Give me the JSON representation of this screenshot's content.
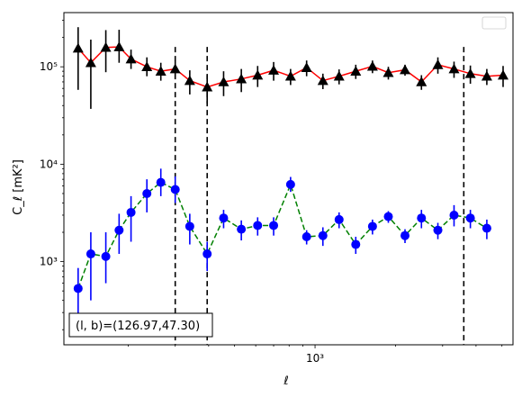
{
  "chart_data": {
    "type": "scatter",
    "xscale": "log",
    "yscale": "log",
    "xlabel": "ℓ",
    "ylabel": "C_ℓ [mK²]",
    "xlim": [
      115,
      5500
    ],
    "ylim": [
      140,
      360000
    ],
    "x_tick_labels": [
      {
        "value": 1000,
        "text": "10³"
      }
    ],
    "y_tick_labels": [
      {
        "value": 1000,
        "text": "10³"
      },
      {
        "value": 10000,
        "text": "10⁴"
      },
      {
        "value": 100000,
        "text": "10⁵"
      }
    ],
    "vlines": [
      300,
      395,
      3600
    ],
    "legend": {
      "placement": "top-right",
      "entries": []
    },
    "annotation": "(l, b)=(126.97,47.30)",
    "colors": {
      "upper_line": "#ff0000",
      "upper_marker": "#000000",
      "lower_line": "#008000",
      "lower_marker": "#0000ff",
      "lower_err": "#0000ff",
      "vline": "#000000"
    },
    "series": [
      {
        "marker": "triangle",
        "line": "solid",
        "x": [
          130,
          145,
          165,
          185,
          205,
          235,
          265,
          300,
          340,
          395,
          455,
          530,
          610,
          700,
          810,
          930,
          1070,
          1230,
          1420,
          1640,
          1880,
          2170,
          2500,
          2880,
          3310,
          3810,
          4390,
          5050
        ],
        "y": [
          155000,
          110000,
          158000,
          160000,
          120000,
          100000,
          90000,
          95000,
          72000,
          62000,
          70000,
          75000,
          82000,
          92000,
          80000,
          98000,
          72000,
          80000,
          90000,
          101000,
          87000,
          93000,
          70000,
          105000,
          95000,
          85000,
          80000,
          82000
        ],
        "err_lo": [
          97000,
          73000,
          70000,
          50000,
          25000,
          20000,
          18000,
          20000,
          20000,
          20000,
          20000,
          20000,
          20000,
          20000,
          15000,
          18000,
          13000,
          14000,
          15000,
          15000,
          13000,
          12000,
          12000,
          20000,
          18000,
          18000,
          15000,
          20000
        ],
        "err_hi": [
          100000,
          80000,
          80000,
          80000,
          30000,
          25000,
          20000,
          20000,
          20000,
          20000,
          20000,
          20000,
          20000,
          20000,
          15000,
          18000,
          13000,
          14000,
          15000,
          15000,
          13000,
          12000,
          12000,
          20000,
          18000,
          18000,
          15000,
          20000
        ]
      },
      {
        "marker": "circle",
        "line": "dashed",
        "x": [
          130,
          145,
          165,
          185,
          205,
          235,
          265,
          300,
          340,
          395,
          455,
          530,
          610,
          700,
          810,
          930,
          1070,
          1230,
          1420,
          1640,
          1880,
          2170,
          2500,
          2880,
          3310,
          3810,
          4390
        ],
        "y": [
          530,
          1200,
          1130,
          2100,
          3200,
          5000,
          6500,
          5500,
          2300,
          1200,
          2800,
          2150,
          2350,
          2350,
          6200,
          1800,
          1850,
          2700,
          1500,
          2300,
          2900,
          1850,
          2800,
          2100,
          3000,
          2800,
          2200
        ],
        "err_lo": [
          270,
          800,
          530,
          900,
          1600,
          1800,
          1800,
          1500,
          800,
          400,
          600,
          500,
          500,
          500,
          1000,
          300,
          400,
          500,
          300,
          400,
          400,
          300,
          600,
          400,
          700,
          600,
          500
        ],
        "err_hi": [
          330,
          800,
          870,
          1000,
          1500,
          2000,
          2500,
          2000,
          800,
          400,
          600,
          500,
          500,
          500,
          1200,
          300,
          400,
          500,
          300,
          400,
          400,
          300,
          600,
          400,
          800,
          600,
          500
        ]
      }
    ]
  }
}
